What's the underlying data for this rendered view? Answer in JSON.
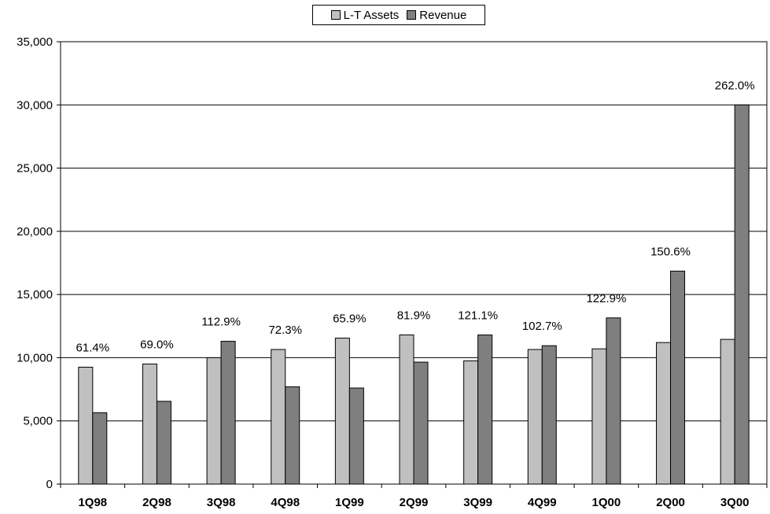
{
  "chart_data": {
    "type": "bar",
    "title": "",
    "xlabel": "",
    "ylabel": "",
    "categories": [
      "1Q98",
      "2Q98",
      "3Q98",
      "4Q98",
      "1Q99",
      "2Q99",
      "3Q99",
      "4Q99",
      "1Q00",
      "2Q00",
      "3Q00"
    ],
    "series": [
      {
        "name": "L-T Assets",
        "color": "#c0c0c0",
        "values": [
          9250,
          9500,
          10000,
          10650,
          11550,
          11800,
          9750,
          10650,
          10700,
          11200,
          11450
        ]
      },
      {
        "name": "Revenue",
        "color": "#7f7f7f",
        "values": [
          5650,
          6550,
          11300,
          7700,
          7600,
          9650,
          11800,
          10950,
          13150,
          16850,
          30000
        ]
      }
    ],
    "annotations": [
      "61.4%",
      "69.0%",
      "112.9%",
      "72.3%",
      "65.9%",
      "81.9%",
      "121.1%",
      "102.7%",
      "122.9%",
      "150.6%",
      "262.0%"
    ],
    "yticks": [
      "0",
      "5,000",
      "10,000",
      "15,000",
      "20,000",
      "25,000",
      "30,000",
      "35,000"
    ],
    "ylim": [
      0,
      35000
    ],
    "grid": true,
    "legend_position": "top-center"
  }
}
